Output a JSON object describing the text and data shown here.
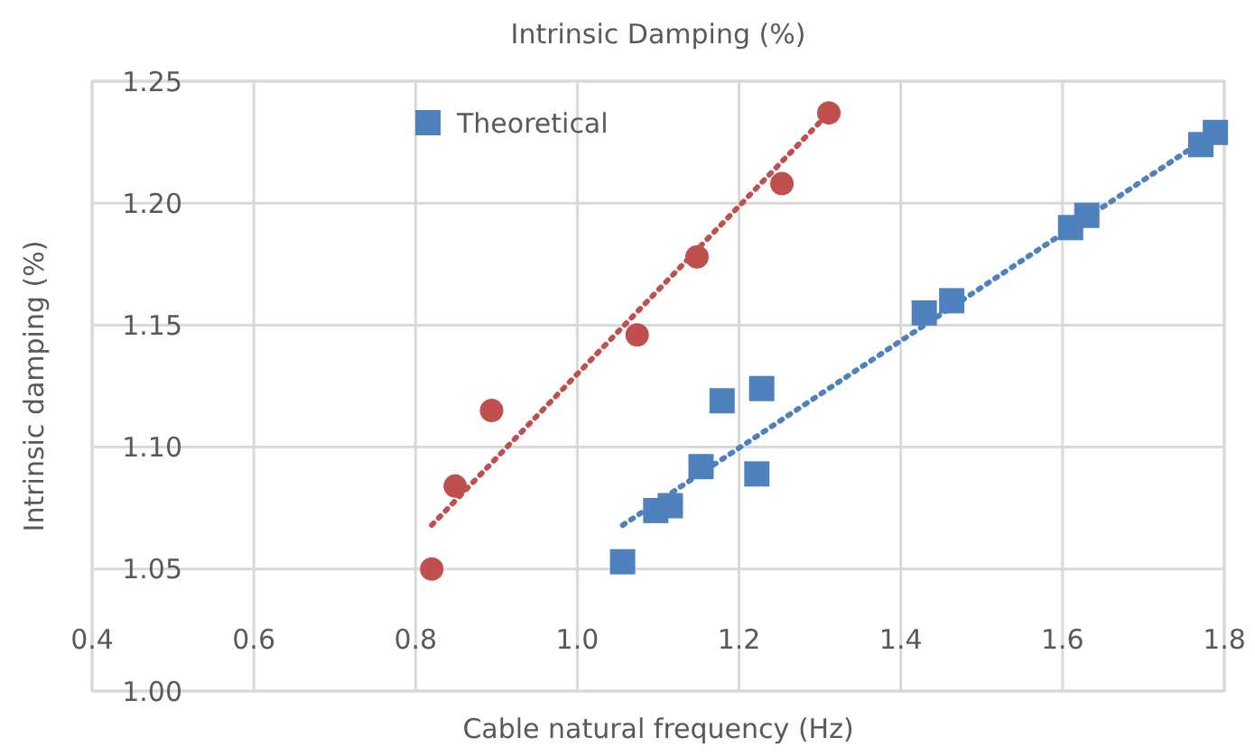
{
  "chart_data": {
    "type": "scatter",
    "title": "Intrinsic Damping (%)",
    "xlabel": "Cable natural frequency (Hz)",
    "ylabel": "Intrinsic damping (%)",
    "xlim": [
      0.4,
      1.8
    ],
    "xticks": [
      0.4,
      {
        "value": 0.6,
        "label": "0.6"
      },
      {
        "value": 0.8,
        "label": "0.8"
      },
      {
        "value": 1.0,
        "label": "1.0"
      },
      {
        "value": 1.2,
        "label": "1.2"
      },
      {
        "value": 1.4,
        "label": "1.4"
      },
      {
        "value": 1.6,
        "label": "1.6"
      },
      {
        "value": 1.8,
        "label": "1.8"
      }
    ],
    "ylim": [
      1.0,
      1.25
    ],
    "yticks": [
      {
        "value": 1.0,
        "label": "1.00"
      },
      1.05,
      {
        "value": 1.1,
        "label": "1.10"
      },
      1.15,
      {
        "value": 1.2,
        "label": "1.20"
      },
      1.25
    ],
    "grid": true,
    "legend": "top left",
    "series": [
      {
        "marker": "circle",
        "color": "#c0504d",
        "x": [
          0.82,
          0.849,
          0.894,
          1.074,
          1.148,
          1.253,
          1.311
        ],
        "values": [
          1.05,
          1.084,
          1.115,
          1.146,
          1.178,
          1.208,
          1.237
        ]
      },
      {
        "type": "line",
        "line_style": "dotted",
        "color": "#c0504d",
        "x": [
          0.82,
          1.311
        ],
        "values": [
          1.068,
          1.237
        ]
      },
      {
        "name": "Theoretical",
        "marker": "square",
        "color": "#4f81bd",
        "x": [
          1.056,
          1.097,
          1.115,
          1.153,
          1.179,
          1.222,
          1.228,
          1.429,
          1.463,
          1.61,
          1.63,
          1.771,
          1.789
        ],
        "values": [
          1.053,
          1.074,
          1.076,
          1.092,
          1.119,
          1.089,
          1.124,
          1.155,
          1.16,
          1.19,
          1.195,
          1.224,
          1.229
        ]
      },
      {
        "type": "line",
        "line_style": "dotted",
        "color": "#4f81bd",
        "x": [
          1.056,
          1.789
        ],
        "values": [
          1.068,
          1.229
        ]
      }
    ]
  }
}
